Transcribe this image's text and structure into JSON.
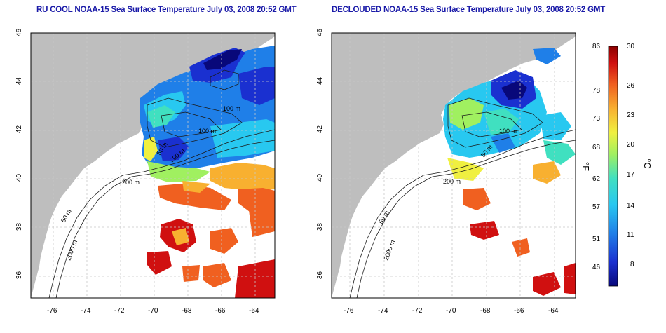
{
  "panels": [
    {
      "title": "RU COOL NOAA-15 Sea Surface Temperature July 03, 2008 20:52 GMT",
      "x_ticks": [
        "-76",
        "-74",
        "-72",
        "-70",
        "-68",
        "-66",
        "-64"
      ],
      "y_ticks": [
        "36",
        "38",
        "40",
        "42",
        "44",
        "46"
      ],
      "contour_labels": [
        "200 m",
        "100 m",
        "100 m",
        "50 m",
        "200 m",
        "50 m",
        "2000 m"
      ]
    },
    {
      "title": "DECLOUDED NOAA-15 Sea Surface Temperature July 03, 2008 20:52 GMT",
      "x_ticks": [
        "-76",
        "-74",
        "-72",
        "-70",
        "-68",
        "-66",
        "-64"
      ],
      "y_ticks": [
        "36",
        "38",
        "40",
        "42",
        "44",
        "46"
      ],
      "contour_labels": [
        "100 m",
        "50 m",
        "200 m",
        "50 m",
        "2000 m"
      ]
    }
  ],
  "colorbar": {
    "fahrenheit_ticks": [
      "86",
      "78",
      "73",
      "68",
      "62",
      "57",
      "51",
      "46"
    ],
    "celsius_ticks": [
      "30",
      "26",
      "23",
      "20",
      "17",
      "14",
      "11",
      "8"
    ],
    "fahrenheit_label": "°F",
    "celsius_label": "°C",
    "colors": [
      "#08087a",
      "#1a30d0",
      "#1f7fe8",
      "#28c8f0",
      "#40e0c0",
      "#a0f060",
      "#f0f040",
      "#f8b030",
      "#f06020",
      "#d01010",
      "#8b0000"
    ]
  },
  "map_colors": {
    "land": "#bebebe",
    "water": "#ffffff",
    "grid": "#c8c8c8",
    "contour": "#1a1a1a"
  }
}
